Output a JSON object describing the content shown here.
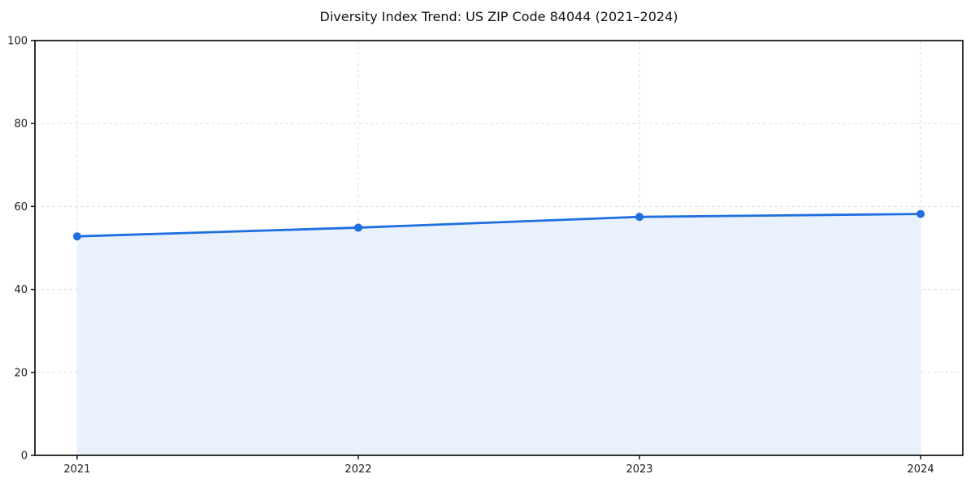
{
  "figure": {
    "background": "#ffffff"
  },
  "chart_data": {
    "type": "line",
    "fill_area": true,
    "title": "Diversity Index Trend: US ZIP Code 84044 (2021–2024)",
    "x": [
      2021,
      2022,
      2023,
      2024
    ],
    "x_labels": [
      "2021",
      "2022",
      "2023",
      "2024"
    ],
    "values": [
      52.8,
      54.9,
      57.5,
      58.2
    ],
    "series": [
      {
        "name": "Diversity Index",
        "values": [
          52.8,
          54.9,
          57.5,
          58.2
        ]
      }
    ],
    "xlabel": "",
    "ylabel": "",
    "xlim": [
      2020.85,
      2024.15
    ],
    "ylim": [
      0,
      100
    ],
    "yticks": [
      0,
      20,
      40,
      60,
      80,
      100
    ],
    "grid": true,
    "grid_style": "dashed",
    "legend": "none",
    "marker": "circle",
    "colors": {
      "line": "#1f6fe0",
      "fill": "#e9f1fc",
      "grid": "#dedede",
      "axis": "#000000",
      "text": "#1a1a1a"
    }
  }
}
